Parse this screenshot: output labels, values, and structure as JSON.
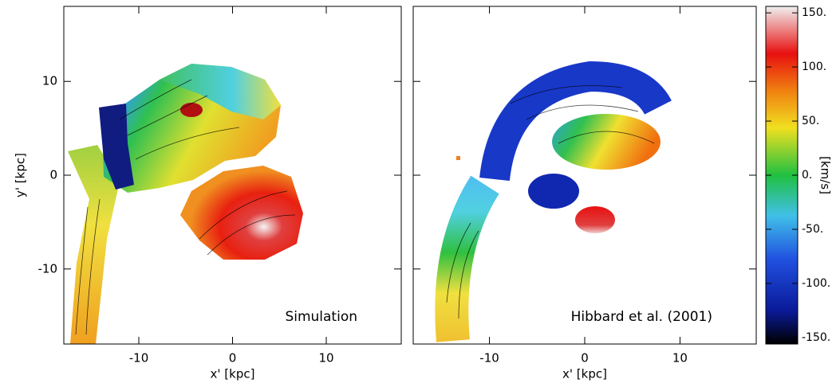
{
  "chart_data": [
    {
      "type": "contour",
      "xlim": [
        -18,
        18
      ],
      "ylim": [
        -18,
        18
      ],
      "xticks": [
        -10,
        0,
        10
      ],
      "yticks": [
        -10,
        0,
        10
      ],
      "xlabel": "x' [kpc]",
      "ylabel": "y' [kpc]",
      "annotation": "Simulation"
    },
    {
      "type": "contour",
      "xlim": [
        -18,
        18
      ],
      "ylim": [
        -18,
        18
      ],
      "xticks": [
        -10,
        0,
        10
      ],
      "yticks": [
        -10,
        0,
        10
      ],
      "show_ytick_labels": false,
      "xlabel": "x' [kpc]",
      "annotation": "Hibbard et al. (2001)"
    },
    {
      "type": "colorbar",
      "ylim": [
        -156,
        156
      ],
      "yticks": [
        {
          "value": 150,
          "label": "150."
        },
        {
          "value": 100,
          "label": "100."
        },
        {
          "value": 50,
          "label": "50."
        },
        {
          "value": 0,
          "label": "0."
        },
        {
          "value": -50,
          "label": "-50."
        },
        {
          "value": -100,
          "label": "-100."
        },
        {
          "value": -150,
          "label": "-150."
        }
      ],
      "ylabel": "[km/s]"
    }
  ]
}
